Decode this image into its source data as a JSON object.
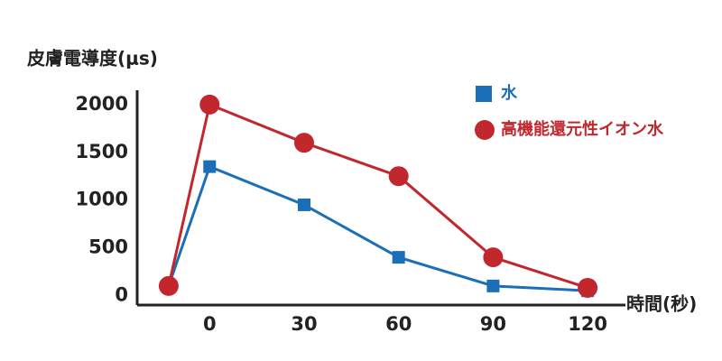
{
  "chart_data": {
    "type": "line",
    "y_label": "皮膚電導度(μs)",
    "x_label": "時間(秒)",
    "x": [
      -13,
      0,
      30,
      60,
      90,
      120
    ],
    "xlim": [
      -23,
      132
    ],
    "xticks": [
      0,
      30,
      60,
      90,
      120
    ],
    "ylim": [
      -100,
      2150
    ],
    "yticks": [
      0,
      500,
      1000,
      1500,
      2000
    ],
    "grid": false,
    "legend": "top-right",
    "series": [
      {
        "name": "水",
        "color": "#1a6fb8",
        "marker": "square",
        "values": [
          100,
          1350,
          950,
          400,
          100,
          50
        ]
      },
      {
        "name": "高機能還元性イオン水",
        "color": "#c1272d",
        "marker": "circle",
        "values": [
          100,
          2000,
          1600,
          1250,
          400,
          80
        ]
      }
    ]
  }
}
